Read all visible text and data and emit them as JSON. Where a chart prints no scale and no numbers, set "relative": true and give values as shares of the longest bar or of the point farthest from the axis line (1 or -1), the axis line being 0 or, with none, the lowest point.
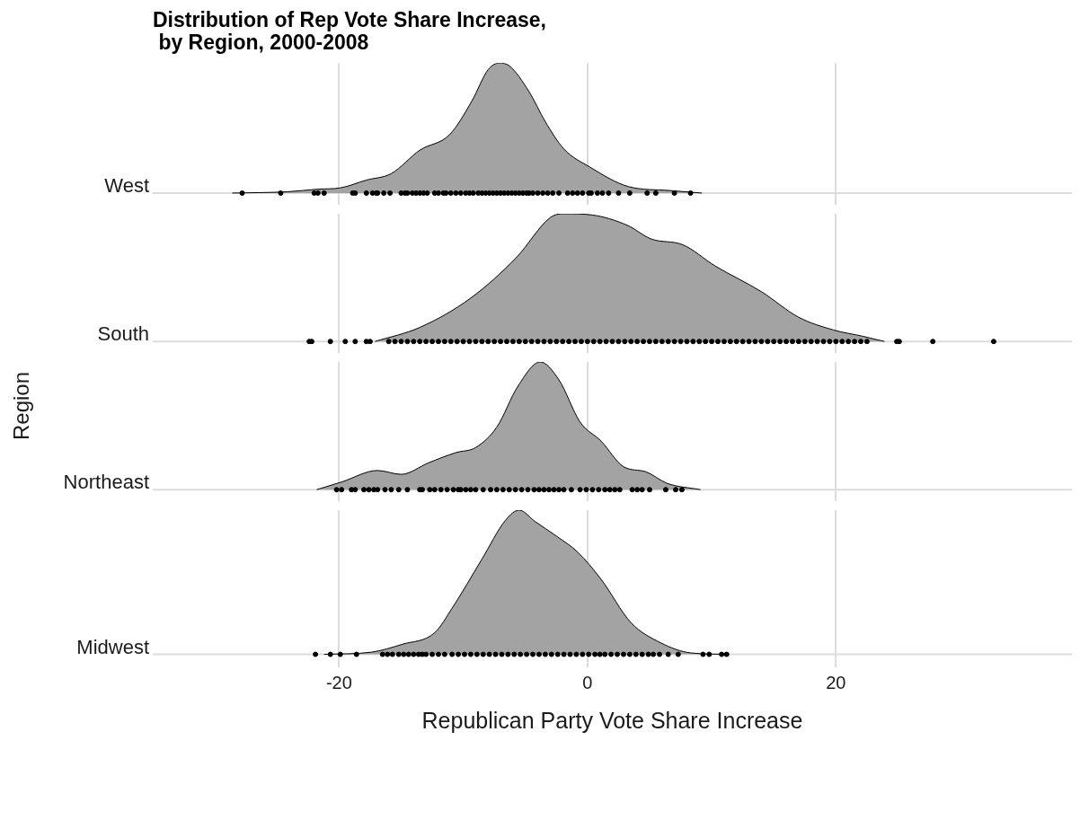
{
  "chart_data": [
    {
      "type": "area",
      "title": "Distribution of Rep Vote Share Increase,\n by Region, 2000-2008",
      "relative": true,
      "xlim": [
        -35,
        39
      ],
      "xticks": [
        -20,
        0,
        20
      ],
      "grid": "x",
      "tick_labels": false,
      "series": [
        {
          "name": "West",
          "color": "#a3a3a3",
          "x": [
            -28.6,
            -24.2,
            -21.7,
            -19.9,
            -17.8,
            -15.8,
            -13.5,
            -11.1,
            -9.3,
            -8.0,
            -7.1,
            -6.3,
            -4.7,
            -3.4,
            -1.9,
            0.2,
            3.3,
            6.6,
            9.2
          ],
          "values": [
            0,
            0.01,
            0.03,
            0.04,
            0.1,
            0.15,
            0.33,
            0.45,
            0.71,
            0.95,
            1,
            0.98,
            0.78,
            0.55,
            0.34,
            0.2,
            0.05,
            0.02,
            0
          ]
        },
        {
          "type": "scatter",
          "marker": "circle",
          "color": "#000000",
          "x": [
            -27.8,
            -24.7,
            -22.0,
            -21.7,
            -21.2,
            -18.9,
            -18.7,
            -17.8,
            -17.3,
            -17.0,
            -16.9,
            -16.4,
            -15.9,
            -15.0,
            -14.7,
            -14.5,
            -14.1,
            -13.8,
            -13.5,
            -13.2,
            -12.9,
            -12.3,
            -12.0,
            -11.6,
            -11.4,
            -11.0,
            -10.6,
            -10.2,
            -9.8,
            -9.5,
            -9.2,
            -8.8,
            -8.5,
            -8.2,
            -7.9,
            -7.6,
            -7.3,
            -7.0,
            -6.7,
            -6.4,
            -6.1,
            -5.8,
            -5.5,
            -5.2,
            -4.9,
            -4.7,
            -4.4,
            -4.0,
            -3.6,
            -3.2,
            -2.8,
            -2.3,
            -1.6,
            -1.2,
            -0.8,
            -0.4,
            0.1,
            0.3,
            0.8,
            1.2,
            1.7,
            2.5,
            3.4,
            4.8,
            5.5,
            7.0,
            8.3
          ],
          "values": [
            0,
            0,
            0,
            0,
            0,
            0,
            0,
            0,
            0,
            0,
            0,
            0,
            0,
            0,
            0,
            0,
            0,
            0,
            0,
            0,
            0,
            0,
            0,
            0,
            0,
            0,
            0,
            0,
            0,
            0,
            0,
            0,
            0,
            0,
            0,
            0,
            0,
            0,
            0,
            0,
            0,
            0,
            0,
            0,
            0,
            0,
            0,
            0,
            0,
            0,
            0,
            0,
            0,
            0,
            0,
            0,
            0,
            0,
            0,
            0,
            0,
            0,
            0,
            0,
            0,
            0,
            0
          ]
        }
      ]
    },
    {
      "type": "area",
      "relative": true,
      "xlim": [
        -35,
        39
      ],
      "xticks": [
        -20,
        0,
        20
      ],
      "grid": "x",
      "tick_labels": false,
      "series": [
        {
          "name": "South",
          "color": "#a3a3a3",
          "x": [
            -17.1,
            -13.5,
            -9.4,
            -5.7,
            -3.0,
            -1.9,
            0.4,
            3.2,
            5.2,
            7.6,
            10.3,
            14.0,
            17.0,
            19.8,
            22.2,
            23.9
          ],
          "values": [
            0,
            0.11,
            0.34,
            0.66,
            0.97,
            1,
            0.99,
            0.91,
            0.8,
            0.76,
            0.59,
            0.39,
            0.19,
            0.09,
            0.04,
            0
          ]
        },
        {
          "type": "scatter",
          "marker": "circle",
          "color": "#000000",
          "x": [
            -22.4,
            -22.2,
            -20.7,
            -19.5,
            -18.7,
            -17.8,
            -17.5,
            -16.0,
            -15.5,
            -15.0,
            -14.5,
            -14.0,
            -13.5,
            -13.0,
            -12.5,
            -12.0,
            -11.5,
            -11.0,
            -10.5,
            -10.0,
            -9.5,
            -9.0,
            -8.5,
            -8.0,
            -7.5,
            -7.0,
            -6.5,
            -6.0,
            -5.5,
            -5.0,
            -4.5,
            -4.0,
            -3.5,
            -3.0,
            -2.5,
            -2.0,
            -1.5,
            -1.0,
            -0.5,
            0.0,
            0.5,
            1.0,
            1.5,
            2.0,
            2.5,
            3.0,
            3.5,
            4.0,
            4.5,
            5.0,
            5.5,
            6.0,
            6.5,
            7.0,
            7.5,
            8.0,
            8.5,
            9.0,
            9.5,
            10.0,
            10.5,
            11.0,
            11.5,
            12.0,
            12.5,
            13.0,
            13.5,
            14.0,
            14.5,
            15.0,
            15.5,
            16.0,
            16.5,
            17.0,
            17.5,
            18.0,
            18.5,
            19.0,
            19.5,
            20.0,
            20.5,
            21.0,
            21.5,
            22.0,
            22.5,
            24.9,
            25.1,
            27.8,
            32.7
          ],
          "values": [
            0,
            0,
            0,
            0,
            0,
            0,
            0,
            0,
            0,
            0,
            0,
            0,
            0,
            0,
            0,
            0,
            0,
            0,
            0,
            0,
            0,
            0,
            0,
            0,
            0,
            0,
            0,
            0,
            0,
            0,
            0,
            0,
            0,
            0,
            0,
            0,
            0,
            0,
            0,
            0,
            0,
            0,
            0,
            0,
            0,
            0,
            0,
            0,
            0,
            0,
            0,
            0,
            0,
            0,
            0,
            0,
            0,
            0,
            0,
            0,
            0,
            0,
            0,
            0,
            0,
            0,
            0,
            0,
            0,
            0,
            0,
            0,
            0,
            0,
            0,
            0,
            0,
            0,
            0,
            0,
            0,
            0,
            0,
            0,
            0,
            0,
            0,
            0,
            0
          ]
        }
      ]
    },
    {
      "type": "area",
      "relative": true,
      "ylabel": "Region",
      "xlim": [
        -35,
        39
      ],
      "xticks": [
        -20,
        0,
        20
      ],
      "grid": "x",
      "tick_labels": false,
      "series": [
        {
          "name": "Northeast",
          "color": "#a3a3a3",
          "x": [
            -21.8,
            -19.8,
            -16.9,
            -15.0,
            -12.8,
            -10.6,
            -9.0,
            -7.3,
            -5.6,
            -3.8,
            -2.3,
            -0.6,
            1.1,
            2.9,
            4.7,
            6.4,
            9.1
          ],
          "values": [
            0,
            0.06,
            0.15,
            0.12,
            0.21,
            0.29,
            0.33,
            0.49,
            0.81,
            1,
            0.86,
            0.53,
            0.38,
            0.18,
            0.14,
            0.05,
            0
          ]
        },
        {
          "type": "scatter",
          "marker": "circle",
          "color": "#000000",
          "x": [
            -20.2,
            -19.8,
            -19.0,
            -18.7,
            -18.0,
            -17.6,
            -17.2,
            -16.9,
            -16.3,
            -15.8,
            -15.2,
            -14.5,
            -13.5,
            -13.3,
            -12.7,
            -12.3,
            -11.8,
            -11.3,
            -10.8,
            -10.4,
            -10.2,
            -9.8,
            -9.4,
            -9.0,
            -8.4,
            -7.8,
            -7.3,
            -6.8,
            -6.3,
            -5.8,
            -5.3,
            -4.8,
            -4.3,
            -3.9,
            -3.5,
            -3.1,
            -2.7,
            -2.3,
            -1.9,
            -1.3,
            -0.6,
            -0.1,
            0.4,
            0.9,
            1.4,
            1.8,
            2.2,
            2.6,
            3.6,
            4.0,
            4.4,
            5.0,
            6.3,
            7.1,
            7.6
          ],
          "values": [
            0,
            0,
            0,
            0,
            0,
            0,
            0,
            0,
            0,
            0,
            0,
            0,
            0,
            0,
            0,
            0,
            0,
            0,
            0,
            0,
            0,
            0,
            0,
            0,
            0,
            0,
            0,
            0,
            0,
            0,
            0,
            0,
            0,
            0,
            0,
            0,
            0,
            0,
            0,
            0,
            0,
            0,
            0,
            0,
            0,
            0,
            0,
            0,
            0,
            0,
            0,
            0,
            0,
            0,
            0
          ]
        }
      ]
    },
    {
      "type": "area",
      "relative": true,
      "xlabel": "Republican Party Vote Share Increase",
      "xlim": [
        -35,
        39
      ],
      "xticks": [
        -20,
        0,
        20
      ],
      "grid": "x",
      "tick_labels": "x",
      "series": [
        {
          "name": "Midwest",
          "color": "#a3a3a3",
          "x": [
            -21.2,
            -17.4,
            -14.9,
            -12.3,
            -10.9,
            -8.5,
            -6.6,
            -5.5,
            -4.2,
            -2.5,
            -0.8,
            1.1,
            3.5,
            5.9,
            8.3,
            11.4
          ],
          "values": [
            0,
            0.015,
            0.07,
            0.15,
            0.32,
            0.66,
            0.93,
            1,
            0.92,
            0.82,
            0.71,
            0.52,
            0.22,
            0.08,
            0.01,
            0
          ]
        },
        {
          "type": "scatter",
          "marker": "circle",
          "color": "#000000",
          "x": [
            -21.9,
            -20.7,
            -19.9,
            -18.6,
            -16.5,
            -16.1,
            -15.7,
            -15.2,
            -14.8,
            -14.4,
            -14.0,
            -13.6,
            -13.3,
            -13.0,
            -12.5,
            -12.0,
            -11.5,
            -10.9,
            -10.4,
            -9.9,
            -9.4,
            -8.9,
            -8.4,
            -7.9,
            -7.4,
            -6.9,
            -6.4,
            -5.9,
            -5.4,
            -4.9,
            -4.4,
            -3.9,
            -3.4,
            -2.9,
            -2.4,
            -1.9,
            -1.4,
            -0.9,
            -0.4,
            0.1,
            0.6,
            1.0,
            1.4,
            1.9,
            2.4,
            2.9,
            3.4,
            3.9,
            4.4,
            4.9,
            5.3,
            5.8,
            6.5,
            7.3,
            9.3,
            9.8,
            10.8,
            11.2
          ],
          "values": [
            0,
            0,
            0,
            0,
            0,
            0,
            0,
            0,
            0,
            0,
            0,
            0,
            0,
            0,
            0,
            0,
            0,
            0,
            0,
            0,
            0,
            0,
            0,
            0,
            0,
            0,
            0,
            0,
            0,
            0,
            0,
            0,
            0,
            0,
            0,
            0,
            0,
            0,
            0,
            0,
            0,
            0,
            0,
            0,
            0,
            0,
            0,
            0,
            0,
            0,
            0,
            0,
            0,
            0,
            0,
            0,
            0,
            0
          ]
        }
      ]
    }
  ]
}
